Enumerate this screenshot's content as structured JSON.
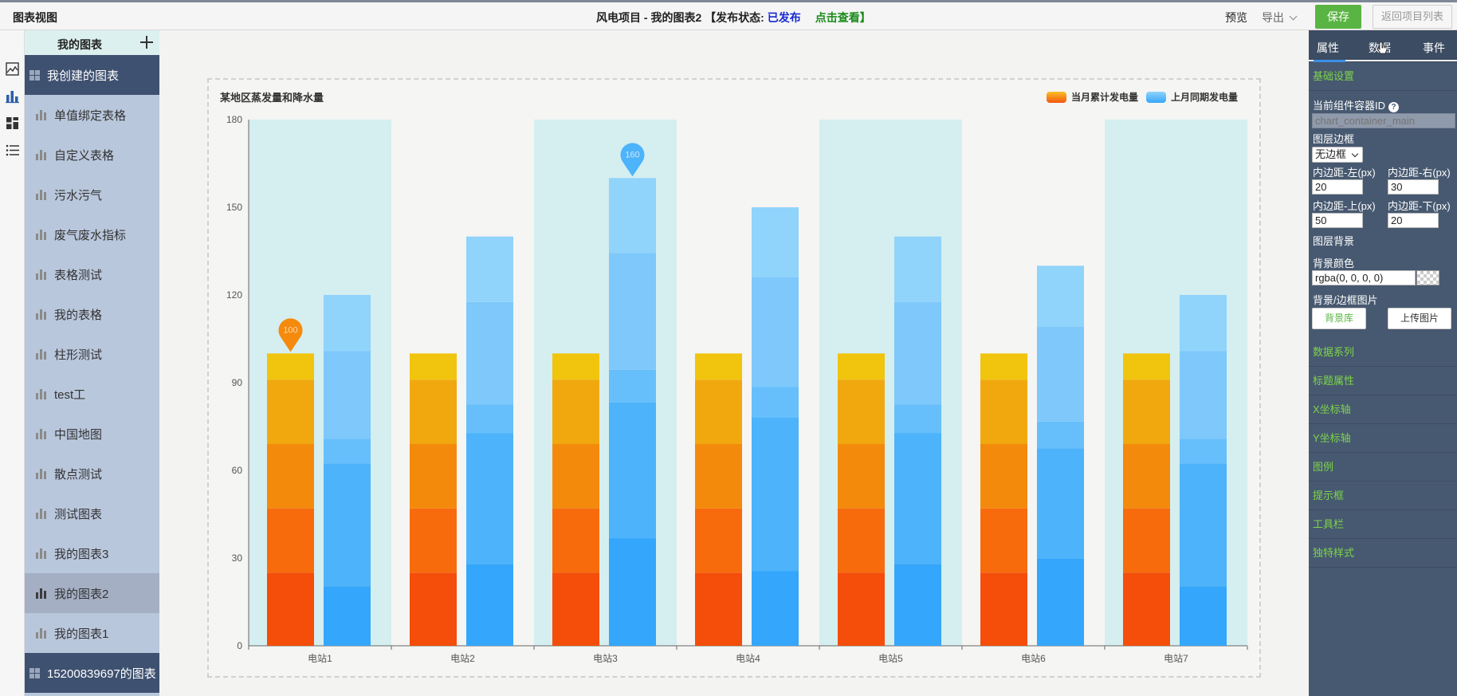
{
  "app_title": "图表视图",
  "header": {
    "project_title": "风电项目 - 我的图表2 【发布状态:",
    "status": "已发布",
    "view_link": "点击查看】",
    "preview": "预览",
    "export": "导出",
    "save": "保存",
    "back": "返回项目列表"
  },
  "sidebar": {
    "title": "我的图表",
    "group_created": "我创建的图表",
    "group_other": "15200839697的图表",
    "items": [
      {
        "label": "单值绑定表格"
      },
      {
        "label": "自定义表格"
      },
      {
        "label": "污水污气"
      },
      {
        "label": "废气废水指标"
      },
      {
        "label": "表格测试"
      },
      {
        "label": "我的表格"
      },
      {
        "label": "柱形测试"
      },
      {
        "label": "test工"
      },
      {
        "label": "中国地图"
      },
      {
        "label": "散点测试"
      },
      {
        "label": "测试图表"
      },
      {
        "label": "我的图表3"
      },
      {
        "label": "我的图表2"
      },
      {
        "label": "我的图表1"
      }
    ],
    "active_index": 12
  },
  "rail": [
    "image-icon",
    "bar-chart-icon",
    "dashboard-icon",
    "list-icon"
  ],
  "chart_data": {
    "type": "bar",
    "title": "某地区蒸发量和降水量",
    "categories": [
      "电站1",
      "电站2",
      "电站3",
      "电站4",
      "电站5",
      "电站6",
      "电站7"
    ],
    "series": [
      {
        "name": "当月累计发电量",
        "values": [
          100,
          100,
          100,
          100,
          100,
          100,
          100
        ],
        "color": "#f7941d"
      },
      {
        "name": "上月同期发电量",
        "values": [
          120,
          140,
          160,
          150,
          140,
          130,
          120
        ],
        "color": "#4fb3f7"
      }
    ],
    "ylim": [
      0,
      180
    ],
    "yticks": [
      0,
      30,
      60,
      90,
      120,
      150,
      180
    ],
    "markers": [
      {
        "series": 0,
        "category": 0,
        "label": "100"
      },
      {
        "series": 1,
        "category": 2,
        "label": "160"
      }
    ],
    "legend_position": "top-right",
    "banded_background": true
  },
  "props": {
    "tabs": [
      "属性",
      "数据",
      "事件"
    ],
    "basic": "基础设置",
    "container_id_label": "当前组件容器ID",
    "container_id_placeholder": "chart_container_main",
    "border_label": "图层边框",
    "border_value": "无边框",
    "pad_left_label": "内边距-左(px)",
    "pad_right_label": "内边距-右(px)",
    "pad_top_label": "内边距-上(px)",
    "pad_bottom_label": "内边距-下(px)",
    "pad_left": "20",
    "pad_right": "30",
    "pad_top": "50",
    "pad_bottom": "20",
    "bg_section": "图层背景",
    "bg_color_label": "背景颜色",
    "bg_color_value": "rgba(0, 0, 0, 0)",
    "bg_image_label": "背景/边框图片",
    "bg_library": "背景库",
    "upload": "上传图片",
    "sections": [
      "数据系列",
      "标题属性",
      "X坐标轴",
      "Y坐标轴",
      "图例",
      "提示框",
      "工具栏",
      "独特样式"
    ]
  }
}
